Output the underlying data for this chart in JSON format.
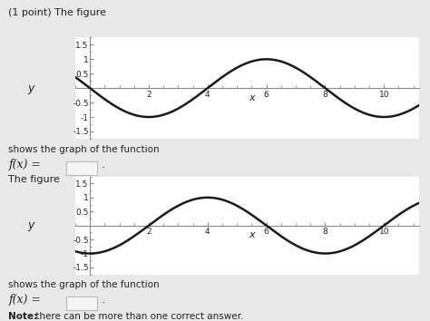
{
  "bg_color": "#e8e8e8",
  "panel_color": "#ffffff",
  "title1": "(1 point) The figure",
  "title2": "The figure",
  "text1": "shows the graph of the function",
  "text2": "shows the graph of the function",
  "fx_label": "f(x) =",
  "note_bold": "Note:",
  "note_rest": " there can be more than one correct answer.",
  "graph1": {
    "amplitude": 1.0,
    "omega": 0.7854,
    "phase": 1.5708,
    "sign": -1,
    "xlim": [
      -0.5,
      11.2
    ],
    "ylim": [
      -1.75,
      1.75
    ],
    "xticks": [
      2,
      4,
      6,
      8,
      10
    ],
    "yticks": [
      -1.5,
      -1,
      -0.5,
      0.5,
      1,
      1.5
    ],
    "xlabel": "x",
    "ylabel": "y"
  },
  "graph2": {
    "amplitude": 1.0,
    "omega": 0.7854,
    "phase": 0.0,
    "sign": -1,
    "xlim": [
      -0.5,
      11.2
    ],
    "ylim": [
      -1.75,
      1.75
    ],
    "xticks": [
      2,
      4,
      6,
      8,
      10
    ],
    "yticks": [
      -1.5,
      -1,
      -0.5,
      0.5,
      1,
      1.5
    ],
    "xlabel": "x",
    "ylabel": "y"
  },
  "curve_color": "#1a1a1a",
  "curve_lw": 1.8,
  "axis_color": "#888888",
  "tick_color": "#888888",
  "text_color": "#222222",
  "input_box_color": "#f5f5f5",
  "input_box_border": "#bbbbbb"
}
